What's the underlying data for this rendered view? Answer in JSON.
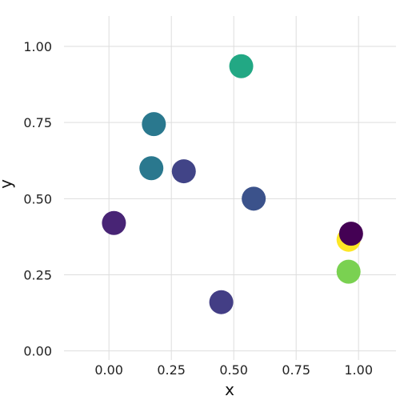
{
  "chart_data": {
    "type": "scatter",
    "title": "",
    "xlabel": "x",
    "ylabel": "y",
    "xlim": [
      -0.18,
      1.15
    ],
    "ylim": [
      -0.03,
      1.1
    ],
    "xticks": [
      0.0,
      0.25,
      0.5,
      0.75,
      1.0
    ],
    "yticks": [
      0.0,
      0.25,
      0.5,
      0.75,
      1.0
    ],
    "xtick_labels": [
      "0.00",
      "0.25",
      "0.50",
      "0.75",
      "1.00"
    ],
    "ytick_labels": [
      "0.00",
      "0.25",
      "0.50",
      "0.75",
      "1.00"
    ],
    "grid": true,
    "colormap": "viridis",
    "points": [
      {
        "x": 0.02,
        "y": 0.42,
        "color": "#482475"
      },
      {
        "x": 0.17,
        "y": 0.6,
        "color": "#2a788e"
      },
      {
        "x": 0.18,
        "y": 0.745,
        "color": "#2a788e"
      },
      {
        "x": 0.3,
        "y": 0.59,
        "color": "#414487"
      },
      {
        "x": 0.45,
        "y": 0.16,
        "color": "#433e85"
      },
      {
        "x": 0.53,
        "y": 0.935,
        "color": "#22a884"
      },
      {
        "x": 0.58,
        "y": 0.5,
        "color": "#3b528b"
      },
      {
        "x": 0.96,
        "y": 0.365,
        "color": "#fde725"
      },
      {
        "x": 0.96,
        "y": 0.26,
        "color": "#7ad151"
      },
      {
        "x": 0.97,
        "y": 0.385,
        "color": "#440154"
      }
    ]
  }
}
